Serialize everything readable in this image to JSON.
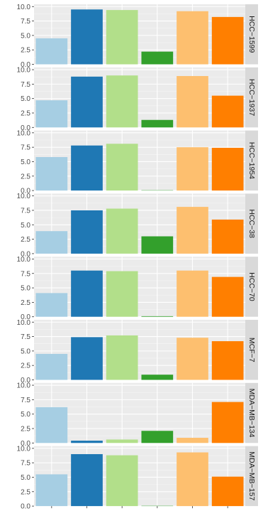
{
  "chart_data": {
    "type": "bar",
    "facet": "rows",
    "y_ticks": [
      "0.0",
      "2.5",
      "5.0",
      "7.5",
      "10.0"
    ],
    "ylim": [
      0,
      10.4
    ],
    "grid": true,
    "series_colors": [
      "#a6cee3",
      "#1f78b4",
      "#b2df8a",
      "#33a02c",
      "#fdbf6f",
      "#ff7f00"
    ],
    "panels": [
      {
        "label": "HCC−1599",
        "values": [
          4.5,
          9.5,
          9.4,
          2.2,
          9.2,
          8.2
        ]
      },
      {
        "label": "HCC−1937",
        "values": [
          4.7,
          8.8,
          9.0,
          1.3,
          8.9,
          5.5
        ]
      },
      {
        "label": "HCC−1954",
        "values": [
          5.8,
          7.8,
          8.1,
          0.05,
          7.5,
          7.4
        ]
      },
      {
        "label": "HCC−38",
        "values": [
          3.9,
          7.5,
          7.8,
          3.0,
          8.1,
          5.9
        ]
      },
      {
        "label": "HCC−70",
        "values": [
          4.1,
          8.0,
          7.9,
          0.1,
          8.0,
          6.9
        ]
      },
      {
        "label": "MCF−7",
        "values": [
          4.5,
          7.4,
          7.7,
          0.9,
          7.3,
          6.7
        ]
      },
      {
        "label": "MDA−MB−134",
        "values": [
          6.2,
          0.4,
          0.6,
          2.1,
          0.9,
          7.1
        ]
      },
      {
        "label": "MDA−MB−157",
        "values": [
          5.5,
          9.0,
          8.8,
          0.05,
          9.3,
          5.1
        ]
      }
    ]
  }
}
